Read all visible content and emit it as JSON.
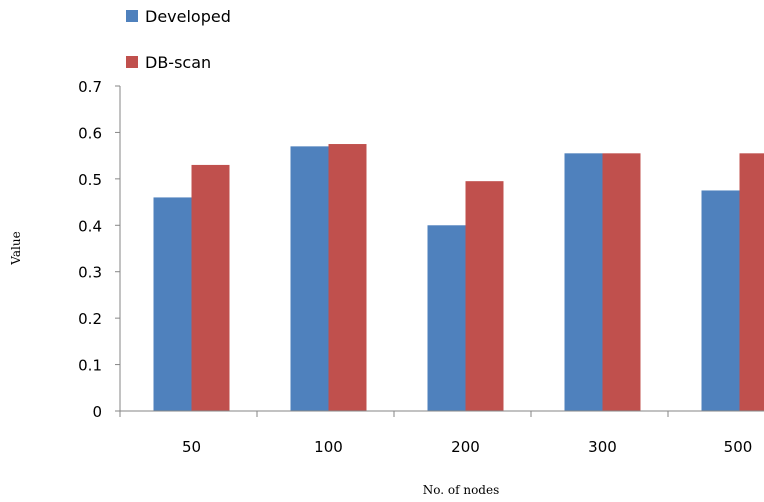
{
  "chart_data": {
    "type": "bar",
    "categories": [
      "50",
      "100",
      "200",
      "300",
      "500"
    ],
    "series": [
      {
        "name": "Developed",
        "values": [
          0.46,
          0.57,
          0.4,
          0.555,
          0.475
        ],
        "color": "#4F81BD"
      },
      {
        "name": "DB-scan",
        "values": [
          0.53,
          0.575,
          0.495,
          0.555,
          0.555
        ],
        "color": "#C0504D"
      }
    ],
    "xlabel": "No. of nodes",
    "ylabel": "Value",
    "ylim": [
      0,
      0.7
    ],
    "yticks": [
      "0",
      "0.1",
      "0.2",
      "0.3",
      "0.4",
      "0.5",
      "0.6",
      "0.7"
    ],
    "grid": false,
    "legend_position": "top-left"
  }
}
